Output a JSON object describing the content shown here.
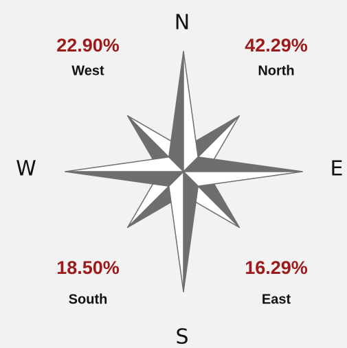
{
  "compass": {
    "north": "N",
    "east": "E",
    "south": "S",
    "west": "W"
  },
  "stats": [
    {
      "value": "22.90%",
      "label": "West"
    },
    {
      "value": "42.29%",
      "label": "North"
    },
    {
      "value": "18.50%",
      "label": "South"
    },
    {
      "value": "16.29%",
      "label": "East"
    }
  ]
}
